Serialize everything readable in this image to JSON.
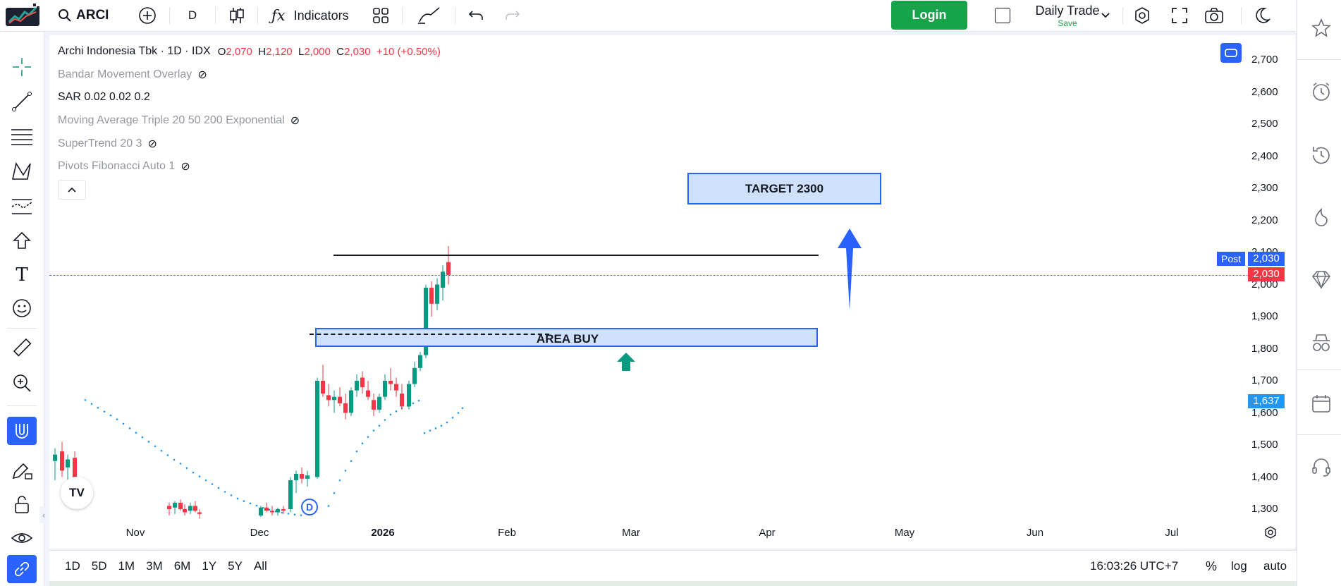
{
  "header": {
    "symbol": "ARCI",
    "interval": "D",
    "indicators_label": "Indicators",
    "login_label": "Login",
    "layout_name": "Daily Trade",
    "layout_status": "Save"
  },
  "legend": {
    "title": "Archi Indonesia Tbk · 1D · IDX",
    "open_label": "O",
    "open": "2,070",
    "high_label": "H",
    "high": "2,120",
    "low_label": "L",
    "low": "2,000",
    "close_label": "C",
    "close": "2,030",
    "change": "+10 (+0.50%)",
    "indicators": [
      {
        "name": "Bandar Movement Overlay",
        "hidden": true
      },
      {
        "name": "SAR 0.02 0.02 0.2",
        "hidden": false
      },
      {
        "name": "Moving Average Triple 20 50 200 Exponential",
        "hidden": true
      },
      {
        "name": "SuperTrend 20 3",
        "hidden": true
      },
      {
        "name": "Pivots Fibonacci Auto 1",
        "hidden": true
      }
    ]
  },
  "chart_data": {
    "type": "candlestick",
    "y_ticks": [
      "2,700",
      "2,600",
      "2,500",
      "2,400",
      "2,300",
      "2,200",
      "2,100",
      "2,000",
      "1,900",
      "1,800",
      "1,700",
      "1,600",
      "1,500",
      "1,400",
      "1,300"
    ],
    "x_ticks": [
      "Nov",
      "Dec",
      "2026",
      "Feb",
      "Mar",
      "Apr",
      "May",
      "Jun",
      "Jul"
    ],
    "last_price": "2,030",
    "post_label": "Post",
    "post_price": "2,030",
    "marker_price": "1,637",
    "ylim": [
      1270,
      2760
    ],
    "annotations": {
      "target_label": "TARGET 2300",
      "buy_label": "AREA BUY",
      "resistance_level": 2100,
      "buy_zone": [
        1805,
        1865
      ],
      "dividend_marker": "D"
    },
    "colors": {
      "up": "#089981",
      "down": "#f23645",
      "sar": "#2196f3",
      "zone": "#cfe0fb",
      "zone_border": "#2962ff"
    }
  },
  "bottom": {
    "timeframes": [
      "1D",
      "5D",
      "1M",
      "3M",
      "6M",
      "1Y",
      "5Y",
      "All"
    ],
    "clock": "16:03:26 UTC+7",
    "pct_label": "%",
    "log_label": "log",
    "auto_label": "auto"
  },
  "watermark": "TV",
  "icons": {
    "search": "search-icon",
    "add": "plus-circle-icon",
    "bars": "candles-icon",
    "fx": "fx-icon",
    "templates": "grid-icon",
    "undo": "undo-icon",
    "redo": "redo-icon"
  }
}
